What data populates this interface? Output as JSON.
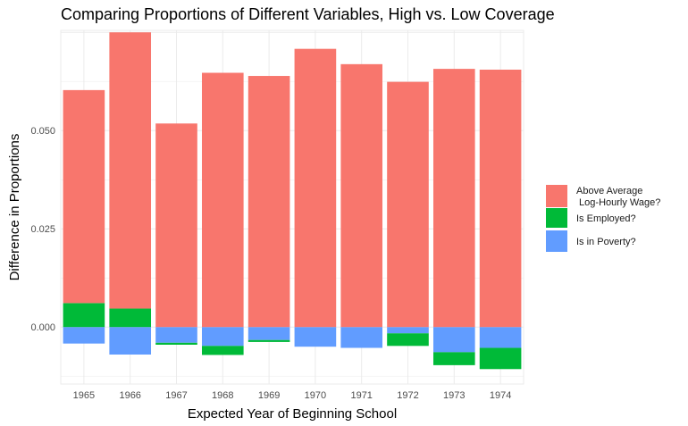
{
  "chart_data": {
    "type": "bar",
    "stacked": true,
    "title": "Comparing Proportions of Different Variables, High vs. Low Coverage",
    "xlabel": "Expected Year of Beginning School",
    "ylabel": "Difference in Proportions",
    "categories": [
      "1965",
      "1966",
      "1967",
      "1968",
      "1969",
      "1970",
      "1971",
      "1972",
      "1973",
      "1974"
    ],
    "yticks": [
      0.0,
      0.025,
      0.05
    ],
    "ytick_labels": [
      "0.000",
      "0.025",
      "0.050"
    ],
    "ylim": [
      -0.0145,
      0.0755
    ],
    "grid": true,
    "legend_position": "right",
    "series": [
      {
        "name": "Above Average\n Log-Hourly Wage?",
        "color": "#F8766D",
        "values": [
          0.0542,
          0.0703,
          0.0518,
          0.0647,
          0.0639,
          0.0708,
          0.0669,
          0.0624,
          0.0657,
          0.0655
        ]
      },
      {
        "name": "Is Employed?",
        "color": "#00BA38",
        "values": [
          0.0061,
          0.0047,
          -0.0005,
          -0.0023,
          -0.0005,
          0.0,
          0.0,
          -0.0032,
          -0.0033,
          -0.0054
        ]
      },
      {
        "name": "Is in Poverty?",
        "color": "#619CFF",
        "values": [
          -0.0042,
          -0.007,
          -0.004,
          -0.0048,
          -0.0033,
          -0.005,
          -0.0053,
          -0.0016,
          -0.0064,
          -0.0053
        ]
      }
    ]
  }
}
